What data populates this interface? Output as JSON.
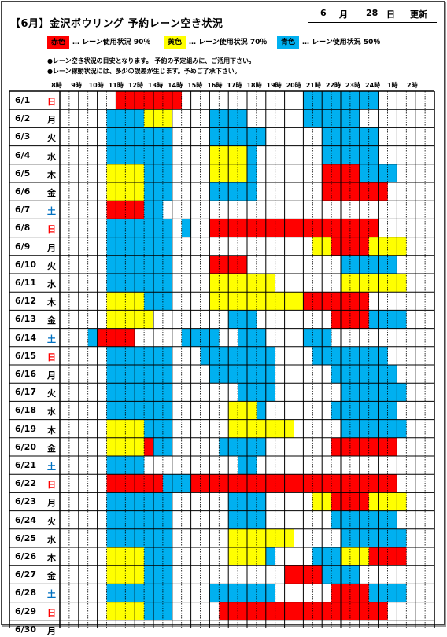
{
  "header": {
    "title": "【6月】金沢ボウリング  予約レーン空き状況",
    "month": "6",
    "month_unit": "月",
    "day": "28",
    "day_unit": "日",
    "updated": "更新"
  },
  "legend": [
    {
      "label": "赤色",
      "text": "… レーン使用状況 90％",
      "color": "#ff0000"
    },
    {
      "label": "黄色",
      "text": "… レーン使用状況 70％",
      "color": "#ffff00"
    },
    {
      "label": "青色",
      "text": "… レーン使用状況 50％",
      "color": "#00b0f0"
    }
  ],
  "notes": [
    "●レーン空き状況の目安となります。 予約の予定組みに、ご活用下さい。",
    "●レーン稼動状況には、多少の誤差が生じます。予めご了承下さい。"
  ],
  "colors": {
    "r": "#ff0000",
    "y": "#ffff00",
    "b": "#00b0f0",
    "sat": "#0070c0",
    "sun": "#ff0000"
  },
  "hours": [
    "8時",
    "9時",
    "10時",
    "11時",
    "12時",
    "13時",
    "14時",
    "15時",
    "16時",
    "17時",
    "18時",
    "19時",
    "20時",
    "21時",
    "22時",
    "23時",
    "24時",
    "1時",
    "2時"
  ],
  "days": [
    {
      "date": "6/1",
      "dow": "日",
      "slots": "......rrrrrrr.............bbbbbbbb......"
    },
    {
      "date": "6/2",
      "dow": "月",
      "slots": ".....bbbbyyy....bbbb......bbbbbb........"
    },
    {
      "date": "6/3",
      "dow": "火",
      "slots": ".....bbbbbbb....bbbbbb......bbbbbb......"
    },
    {
      "date": "6/4",
      "dow": "水",
      "slots": ".....bbbbbbb....yyyyb.......bbbbbb......"
    },
    {
      "date": "6/5",
      "dow": "木",
      "slots": ".....yyyybbb....yyyyb.......rrrrbbbb....."
    },
    {
      "date": "6/6",
      "dow": "金",
      "slots": ".....yyyybbb....bbbbb.......rrrrrrr......"
    },
    {
      "date": "6/7",
      "dow": "土",
      "slots": ".....rrrrbb............................."
    },
    {
      "date": "6/8",
      "dow": "日",
      "slots": ".....bbbbbbb.b..rrrrrrrrrrrrrrrrrr......."
    },
    {
      "date": "6/9",
      "dow": "月",
      "slots": ".....bbbbbbb...............yyrrrryyyy...."
    },
    {
      "date": "6/10",
      "dow": "火",
      "slots": ".....bbbbbbb....rrrr..........bbbbbb......"
    },
    {
      "date": "6/11",
      "dow": "水",
      "slots": ".....bbbbbbb....yyyyyyy.......yyyyyyy....."
    },
    {
      "date": "6/12",
      "dow": "木",
      "slots": ".....yyyybbb....yyyyyyyyyyrrrrrrr........"
    },
    {
      "date": "6/13",
      "dow": "金",
      "slots": ".....yyyyy........bbb........rrrrbbbb....."
    },
    {
      "date": "6/14",
      "dow": "土",
      "slots": "...brrrr.....bbbb..bbb....bbb..........."
    },
    {
      "date": "6/15",
      "dow": "日",
      "slots": ".....bbbbbbb...bbbbbbbb....bbbbbbbb......"
    },
    {
      "date": "6/16",
      "dow": "月",
      "slots": ".....bbbbbbb....bbbbbbb......bbbbbbb......"
    },
    {
      "date": "6/17",
      "dow": "火",
      "slots": ".....bbbbbbb.......bbbb.......bbbbbbb......"
    },
    {
      "date": "6/18",
      "dow": "水",
      "slots": ".....bbbbbbb......yyyb.......bbbbbbb......"
    },
    {
      "date": "6/19",
      "dow": "木",
      "slots": ".....yyyybbb......yyyyyyy.....bbbbbbb......"
    },
    {
      "date": "6/20",
      "dow": "金",
      "slots": ".....yyyyrbb.....bbbbb.......rrrrrrr......"
    },
    {
      "date": "6/21",
      "dow": "土",
      "slots": ".....bbbb..........bb...................."
    },
    {
      "date": "6/22",
      "dow": "日",
      "slots": ".....rrrrrrbbbrrrrrrrrrrrrrrrrrrrrrr......"
    },
    {
      "date": "6/23",
      "dow": "月",
      "slots": ".....bbbbbbb......bbbb.....yyrrrryyyy...."
    },
    {
      "date": "6/24",
      "dow": "火",
      "slots": ".....bbbbbbb......bbbb.......bbbbbbb......"
    },
    {
      "date": "6/25",
      "dow": "水",
      "slots": ".....bbbbbbb......yyyyyyy.....bbbbbbb......"
    },
    {
      "date": "6/26",
      "dow": "木",
      "slots": ".....yyyybbb......yyyyb....bbbyyyrrrr....."
    },
    {
      "date": "6/27",
      "dow": "金",
      "slots": ".....yyyybbb............rrrrbbbb........."
    },
    {
      "date": "6/28",
      "dow": "土",
      "slots": ".....bbbbbbb....bbbbbbb......rrrrbbbb......"
    },
    {
      "date": "6/29",
      "dow": "日",
      "slots": ".....yyyybbb.....rrrrrrrrrrrrrrrrrr......."
    },
    {
      "date": "6/30",
      "dow": "月",
      "slots": "........................................"
    }
  ]
}
